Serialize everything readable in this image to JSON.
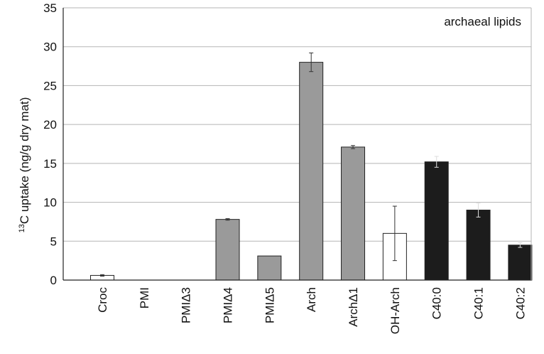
{
  "chart_data": {
    "type": "bar",
    "categories": [
      "Croc",
      "PMI",
      "PMIΔ3",
      "PMIΔ4",
      "PMIΔ5",
      "Arch",
      "ArchΔ1",
      "OH-Arch",
      "C40:0",
      "C40:1",
      "C40:2"
    ],
    "values": [
      0.6,
      0,
      0,
      7.8,
      3.1,
      28.0,
      17.1,
      6.0,
      15.2,
      9.0,
      4.5
    ],
    "error_low": [
      0.5,
      0,
      0,
      7.7,
      3.1,
      26.8,
      16.9,
      2.5,
      14.5,
      8.1,
      4.2
    ],
    "error_high": [
      0.7,
      0,
      0,
      7.9,
      3.1,
      29.2,
      17.3,
      9.5,
      15.9,
      9.9,
      4.8
    ],
    "fill_colors": [
      "#ffffff",
      "#ffffff",
      "#ffffff",
      "#9a9a9a",
      "#9a9a9a",
      "#9a9a9a",
      "#9a9a9a",
      "#ffffff",
      "#1c1c1c",
      "#1c1c1c",
      "#1c1c1c"
    ],
    "ylim": [
      0,
      35
    ],
    "yticks": [
      "0",
      "5",
      "10",
      "15",
      "20",
      "25",
      "30",
      "35"
    ],
    "ylabel_sup": "13",
    "ylabel": "C uptake (ng/g dry mat)",
    "annotation": "archaeal lipids",
    "grid": true
  }
}
